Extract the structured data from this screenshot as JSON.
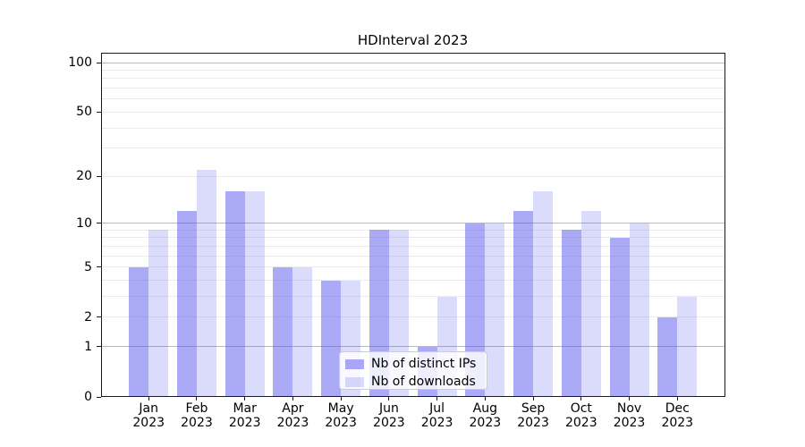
{
  "figure": {
    "background": "#ffffff"
  },
  "chart_data": {
    "type": "bar",
    "title": "HDInterval 2023",
    "xlabel": "",
    "ylabel": "",
    "yscale": "log(1+x)",
    "ylim": [
      0,
      115
    ],
    "yticks": [
      0,
      1,
      2,
      5,
      10,
      20,
      50,
      100
    ],
    "gridlines": {
      "major": [
        1,
        10,
        100
      ],
      "minor": [
        2,
        3,
        4,
        5,
        6,
        7,
        8,
        9,
        20,
        30,
        40,
        50,
        60,
        70,
        80,
        90
      ],
      "major_color": "#b9b9b9",
      "minor_color": "#ebebeb"
    },
    "grid": true,
    "legend_position": "inside bottom-center",
    "categories": [
      "Jan 2023",
      "Feb 2023",
      "Mar 2023",
      "Apr 2023",
      "May 2023",
      "Jun 2023",
      "Jul 2023",
      "Aug 2023",
      "Sep 2023",
      "Oct 2023",
      "Nov 2023",
      "Dec 2023"
    ],
    "series": [
      {
        "name": "Nb of distinct IPs",
        "fill_hex": "#aaaaf6",
        "fill_rgba": "rgba(85,85,238,0.5)",
        "values": [
          5,
          12,
          16,
          5,
          4,
          9,
          1,
          10,
          12,
          9,
          8,
          2
        ]
      },
      {
        "name": "Nb of downloads",
        "fill_hex": "#dadafa",
        "fill_rgba": "rgba(85,85,238,0.21)",
        "values": [
          9,
          22,
          16,
          5,
          4,
          9,
          3,
          10,
          16,
          12,
          10,
          3
        ]
      }
    ]
  }
}
